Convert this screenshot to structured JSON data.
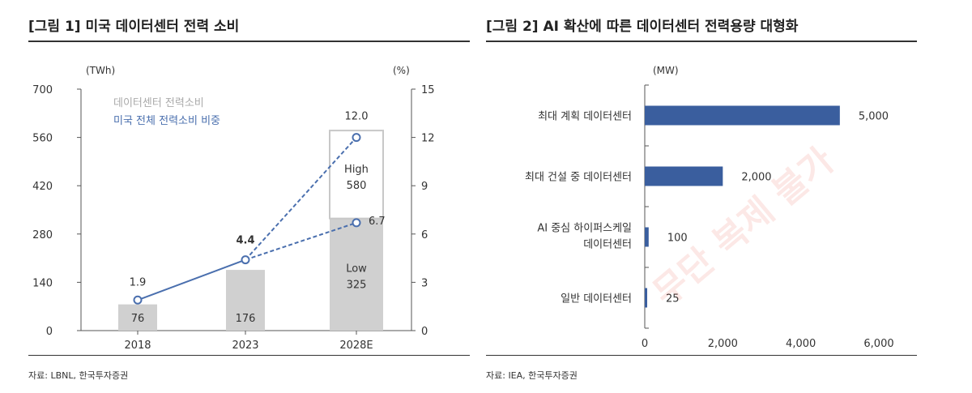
{
  "watermark": "무단 복제 불가",
  "chart_data": [
    {
      "type": "bar+line",
      "title": "[그림 1] 미국 데이터센터 전력 소비",
      "source": "자료: LBNL, 한국투자증권",
      "y_unit": "(TWh)",
      "y2_unit": "(%)",
      "ylim": [
        0,
        700
      ],
      "y2lim": [
        0,
        15
      ],
      "yticks": [
        "700",
        "560",
        "420",
        "280",
        "140",
        "0"
      ],
      "y2ticks": [
        "15",
        "12",
        "9",
        "6",
        "3",
        "0"
      ],
      "categories": [
        "2018",
        "2023",
        "2028E"
      ],
      "legend": [
        "데이터센터 전력소비",
        "미국 전체 전력소비 비중"
      ],
      "bars": [
        {
          "category": "2018",
          "value": 76,
          "label": "76"
        },
        {
          "category": "2023",
          "value": 176,
          "label": "176"
        },
        {
          "category": "2028E",
          "low": 325,
          "high": 580,
          "low_label_name": "Low",
          "low_label": "325",
          "high_label_name": "High",
          "high_label": "580"
        }
      ],
      "line": [
        {
          "category": "2018",
          "value": 1.9,
          "label": "1.9"
        },
        {
          "category": "2023",
          "value": 4.4,
          "label": "4.4"
        }
      ],
      "line_projection": [
        {
          "category": "2028E",
          "value": 12.0,
          "label": "12.0"
        },
        {
          "category": "2028E",
          "value": 6.7,
          "label": "6.7"
        }
      ],
      "colors": {
        "bar": "#d0d0d0",
        "line": "#4a6fae",
        "legend_bar_text": "#aaaaaa",
        "legend_line_text": "#4a6fae"
      }
    },
    {
      "type": "bar-horizontal",
      "title": "[그림 2] AI 확산에 따른 데이터센터 전력용량 대형화",
      "source": "자료: IEA, 한국투자증권",
      "x_unit": "(MW)",
      "xlim": [
        0,
        6000
      ],
      "xticks": [
        "0",
        "2,000",
        "4,000",
        "6,000"
      ],
      "bars": [
        {
          "category": [
            "최대 계획 데이터센터"
          ],
          "value": 5000,
          "label": "5,000"
        },
        {
          "category": [
            "최대 건설 중 데이터센터"
          ],
          "value": 2000,
          "label": "2,000"
        },
        {
          "category": [
            "AI 중심 하이퍼스케일",
            "데이터센터"
          ],
          "value": 100,
          "label": "100"
        },
        {
          "category": [
            "일반 데이터센터"
          ],
          "value": 25,
          "label": "25"
        }
      ],
      "colors": {
        "bar": "#3a5e9e"
      }
    }
  ]
}
